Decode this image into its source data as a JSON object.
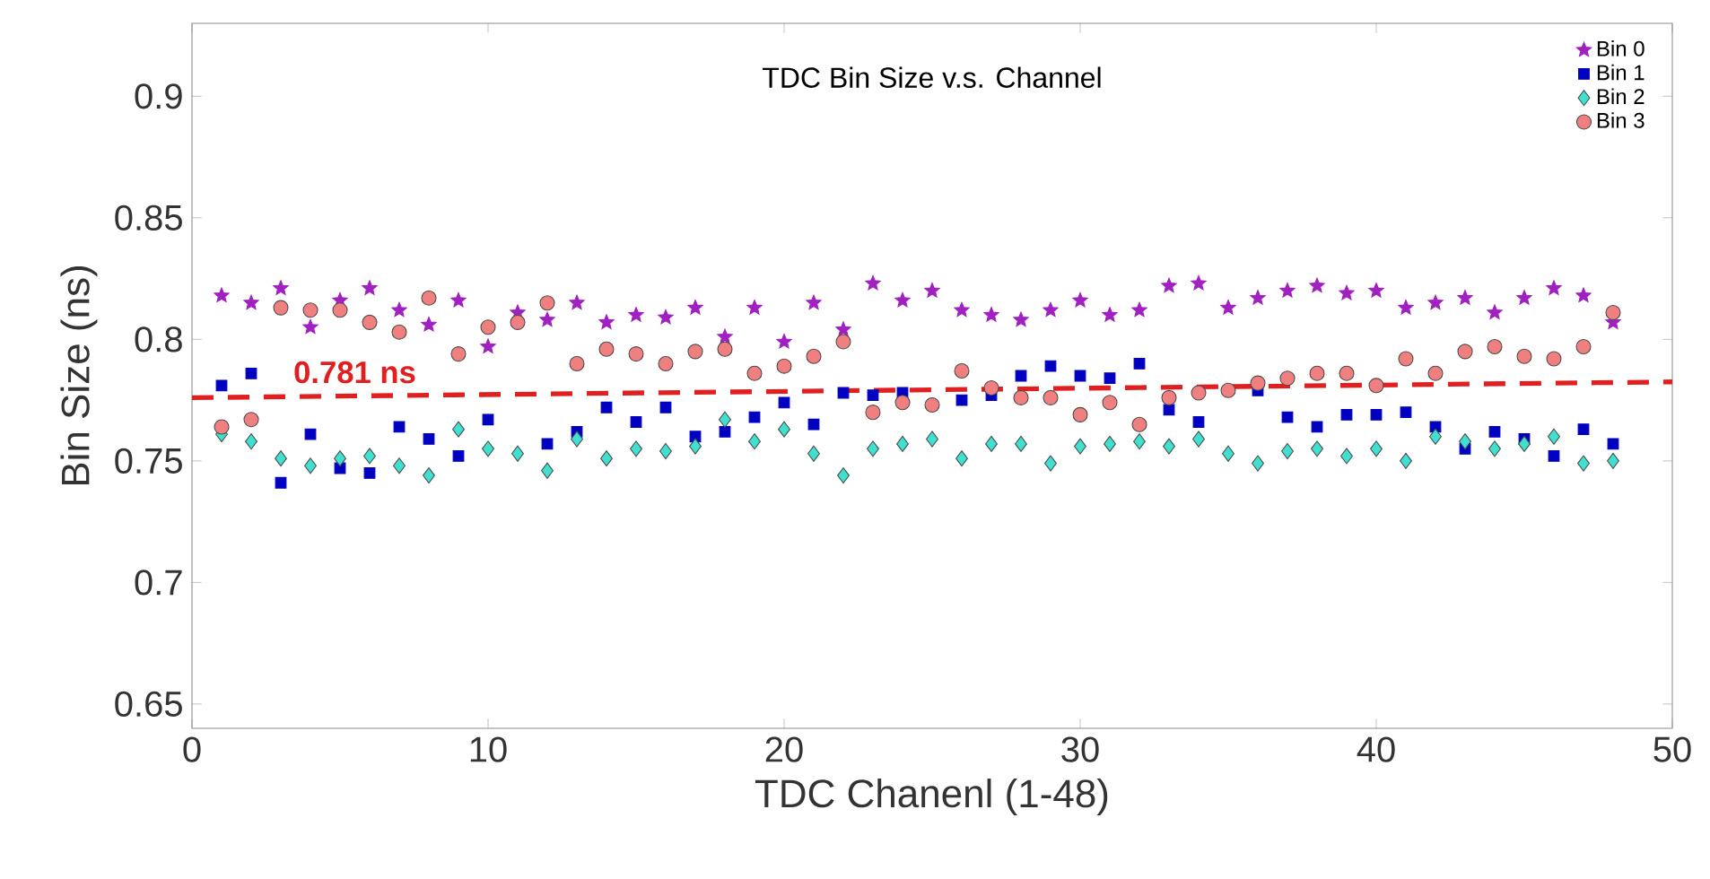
{
  "chart_data": {
    "type": "scatter",
    "title": "TDC Bin Size v.s. Channel",
    "xlabel": "TDC Chanenl (1-48)",
    "ylabel": "Bin Size (ns)",
    "x": [
      1,
      2,
      3,
      4,
      5,
      6,
      7,
      8,
      9,
      10,
      11,
      12,
      13,
      14,
      15,
      16,
      17,
      18,
      19,
      20,
      21,
      22,
      23,
      24,
      25,
      26,
      27,
      28,
      29,
      30,
      31,
      32,
      33,
      34,
      35,
      36,
      37,
      38,
      39,
      40,
      41,
      42,
      43,
      44,
      45,
      46,
      47,
      48
    ],
    "series": [
      {
        "name": "Bin 0",
        "color": "#a020c0",
        "marker": "star",
        "values": [
          0.818,
          0.815,
          0.821,
          0.805,
          0.816,
          0.821,
          0.812,
          0.806,
          0.816,
          0.797,
          0.811,
          0.808,
          0.815,
          0.807,
          0.81,
          0.809,
          0.813,
          0.801,
          0.813,
          0.799,
          0.815,
          0.804,
          0.823,
          0.816,
          0.82,
          0.812,
          0.81,
          0.808,
          0.812,
          0.816,
          0.81,
          0.812,
          0.822,
          0.823,
          0.813,
          0.817,
          0.82,
          0.822,
          0.819,
          0.82,
          0.813,
          0.815,
          0.817,
          0.811,
          0.817,
          0.821,
          0.818,
          0.807
        ]
      },
      {
        "name": "Bin 1",
        "color": "#0000c0",
        "marker": "square",
        "values": [
          0.781,
          0.786,
          0.741,
          0.761,
          0.747,
          0.745,
          0.764,
          0.759,
          0.752,
          0.767,
          null,
          0.757,
          0.762,
          0.772,
          0.766,
          0.772,
          0.76,
          0.762,
          0.768,
          0.774,
          0.765,
          0.778,
          0.777,
          0.778,
          null,
          0.775,
          0.777,
          0.785,
          0.789,
          0.785,
          0.784,
          0.79,
          0.771,
          0.766,
          null,
          0.779,
          0.768,
          0.764,
          0.769,
          0.769,
          0.77,
          0.764,
          0.755,
          0.762,
          0.759,
          0.752,
          0.763,
          0.757
        ]
      },
      {
        "name": "Bin 2",
        "color": "#40e0d0",
        "marker": "diamond",
        "values": [
          0.761,
          0.758,
          0.751,
          0.748,
          0.751,
          0.752,
          0.748,
          0.744,
          0.763,
          0.755,
          0.753,
          0.746,
          0.759,
          0.751,
          0.755,
          0.754,
          0.756,
          0.767,
          0.758,
          0.763,
          0.753,
          0.744,
          0.755,
          0.757,
          0.759,
          0.751,
          0.757,
          0.757,
          0.749,
          0.756,
          0.757,
          0.758,
          0.756,
          0.759,
          0.753,
          0.749,
          0.754,
          0.755,
          0.752,
          0.755,
          0.75,
          0.76,
          0.758,
          0.755,
          0.757,
          0.76,
          0.749,
          0.75
        ]
      },
      {
        "name": "Bin 3",
        "color": "#f08080",
        "marker": "circle",
        "values": [
          0.764,
          0.767,
          0.813,
          0.812,
          0.812,
          0.807,
          0.803,
          0.817,
          0.794,
          0.805,
          0.807,
          0.815,
          0.79,
          0.796,
          0.794,
          0.79,
          0.795,
          0.796,
          0.786,
          0.789,
          0.793,
          0.799,
          0.77,
          0.774,
          0.773,
          0.787,
          0.78,
          0.776,
          0.776,
          0.769,
          0.774,
          0.765,
          0.776,
          0.778,
          0.779,
          0.782,
          0.784,
          0.786,
          0.786,
          0.781,
          0.792,
          0.786,
          0.795,
          0.797,
          0.793,
          0.792,
          0.797,
          0.811
        ]
      },
      {
        "type": "line",
        "x": [
          0,
          50
        ],
        "color": "#e02020",
        "line_style": "dashed",
        "values": [
          0.776,
          0.7825
        ]
      }
    ],
    "annotations": [
      "0.781 ns"
    ],
    "xlim": [
      0,
      50
    ],
    "xticks": [
      0,
      10,
      20,
      30,
      40,
      50
    ],
    "ylim": [
      0.64,
      0.93
    ],
    "yticks": [
      0.65,
      0.7,
      0.75,
      0.8,
      0.85,
      0.9
    ],
    "grid": false,
    "legend": "top right"
  }
}
